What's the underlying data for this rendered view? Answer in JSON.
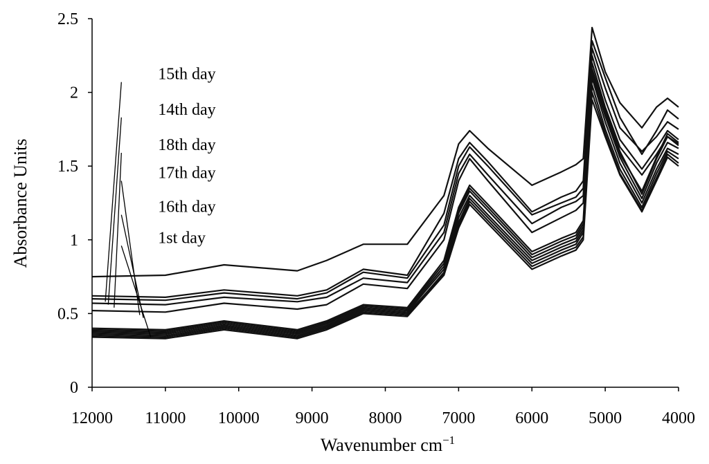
{
  "chart_data": {
    "type": "line",
    "title": "",
    "xlabel": "Wavenumber cm",
    "xlabel_superscript": "−1",
    "ylabel": "Absorbance Units",
    "xlim": [
      12000,
      4000
    ],
    "ylim": [
      0,
      2.5
    ],
    "x_reversed": true,
    "grid": false,
    "x_ticks": [
      12000,
      11000,
      10000,
      9000,
      8000,
      7000,
      6000,
      5000,
      4000
    ],
    "y_ticks": [
      0,
      0.5,
      1,
      1.5,
      2,
      2.5
    ],
    "x_tick_labels": [
      "12000",
      "11000",
      "10000",
      "9000",
      "8000",
      "7000",
      "6000",
      "5000",
      "4000"
    ],
    "y_tick_labels": [
      "0",
      "0.5",
      "1",
      "1.5",
      "2",
      "2.5"
    ],
    "x": [
      12000,
      11000,
      10200,
      9200,
      8800,
      8300,
      7700,
      7200,
      7000,
      6850,
      6600,
      6000,
      5600,
      5400,
      5300,
      5180,
      5000,
      4800,
      4500,
      4300,
      4150,
      4000
    ],
    "series": [
      {
        "name": "15th day",
        "values": [
          0.75,
          0.76,
          0.83,
          0.79,
          0.86,
          0.97,
          0.97,
          1.3,
          1.65,
          1.74,
          1.62,
          1.37,
          1.46,
          1.51,
          1.55,
          2.44,
          2.14,
          1.93,
          1.76,
          1.9,
          1.96,
          1.9
        ]
      },
      {
        "name": "14th day",
        "values": [
          0.62,
          0.61,
          0.66,
          0.62,
          0.66,
          0.8,
          0.76,
          1.18,
          1.55,
          1.66,
          1.53,
          1.19,
          1.29,
          1.33,
          1.4,
          2.35,
          2.1,
          1.83,
          1.58,
          1.74,
          1.88,
          1.82
        ]
      },
      {
        "name": "18th day",
        "values": [
          0.6,
          0.59,
          0.64,
          0.6,
          0.64,
          0.78,
          0.74,
          1.1,
          1.5,
          1.63,
          1.5,
          1.17,
          1.25,
          1.29,
          1.35,
          2.3,
          2.03,
          1.76,
          1.6,
          1.7,
          1.8,
          1.75
        ]
      },
      {
        "name": "17th day",
        "values": [
          0.57,
          0.56,
          0.61,
          0.58,
          0.61,
          0.74,
          0.71,
          1.05,
          1.45,
          1.58,
          1.44,
          1.11,
          1.22,
          1.26,
          1.3,
          2.25,
          1.95,
          1.68,
          1.48,
          1.62,
          1.74,
          1.68
        ]
      },
      {
        "name": "16th day",
        "values": [
          0.52,
          0.51,
          0.57,
          0.53,
          0.56,
          0.7,
          0.67,
          1.0,
          1.4,
          1.55,
          1.4,
          1.05,
          1.15,
          1.2,
          1.25,
          2.2,
          1.9,
          1.63,
          1.44,
          1.58,
          1.7,
          1.64
        ]
      },
      {
        "name": "1st day",
        "values": [
          0.35,
          0.34,
          0.4,
          0.34,
          0.4,
          0.51,
          0.49,
          0.78,
          1.12,
          1.28,
          1.15,
          0.84,
          0.93,
          0.97,
          1.05,
          2.1,
          1.8,
          1.52,
          1.25,
          1.48,
          1.62,
          1.58
        ]
      },
      {
        "name": "",
        "values": [
          0.36,
          0.35,
          0.41,
          0.35,
          0.41,
          0.52,
          0.5,
          0.77,
          1.1,
          1.26,
          1.13,
          0.82,
          0.91,
          0.95,
          1.02,
          2.05,
          1.75,
          1.48,
          1.22,
          1.45,
          1.6,
          1.55
        ]
      },
      {
        "name": "",
        "values": [
          0.37,
          0.36,
          0.42,
          0.36,
          0.42,
          0.53,
          0.51,
          0.8,
          1.15,
          1.3,
          1.17,
          0.86,
          0.95,
          0.99,
          1.07,
          2.12,
          1.84,
          1.56,
          1.28,
          1.52,
          1.66,
          1.62
        ]
      },
      {
        "name": "",
        "values": [
          0.38,
          0.37,
          0.43,
          0.37,
          0.43,
          0.54,
          0.52,
          0.82,
          1.18,
          1.33,
          1.2,
          0.88,
          0.97,
          1.01,
          1.09,
          2.16,
          1.88,
          1.6,
          1.31,
          1.55,
          1.7,
          1.65
        ]
      },
      {
        "name": "",
        "values": [
          0.39,
          0.38,
          0.44,
          0.38,
          0.44,
          0.55,
          0.53,
          0.84,
          1.2,
          1.35,
          1.22,
          0.9,
          0.99,
          1.03,
          1.11,
          2.0,
          1.72,
          1.45,
          1.2,
          1.42,
          1.58,
          1.52
        ]
      },
      {
        "name": "",
        "values": [
          0.34,
          0.33,
          0.39,
          0.33,
          0.39,
          0.5,
          0.48,
          0.76,
          1.08,
          1.24,
          1.11,
          0.8,
          0.89,
          0.93,
          1.0,
          1.95,
          1.7,
          1.44,
          1.19,
          1.4,
          1.56,
          1.5
        ]
      },
      {
        "name": "",
        "values": [
          0.4,
          0.39,
          0.45,
          0.39,
          0.45,
          0.56,
          0.54,
          0.86,
          1.22,
          1.37,
          1.24,
          0.92,
          1.01,
          1.05,
          1.13,
          2.14,
          1.86,
          1.58,
          1.33,
          1.56,
          1.72,
          1.66
        ]
      }
    ],
    "annotations": [
      {
        "text": "15th day",
        "label_at": [
          11100,
          2.07
        ],
        "line_from": [
          11600,
          2.07
        ],
        "line_to": [
          11820,
          0.58
        ]
      },
      {
        "text": "14th day",
        "label_at": [
          11100,
          1.83
        ],
        "line_from": [
          11600,
          1.83
        ],
        "line_to": [
          11780,
          0.56
        ]
      },
      {
        "text": "18th day",
        "label_at": [
          11100,
          1.59
        ],
        "line_from": [
          11600,
          1.59
        ],
        "line_to": [
          11700,
          0.54
        ]
      },
      {
        "text": "17th day",
        "label_at": [
          11100,
          1.4
        ],
        "line_from": [
          11600,
          1.4
        ],
        "line_to": [
          11350,
          0.49
        ]
      },
      {
        "text": "16th day",
        "label_at": [
          11100,
          1.17
        ],
        "line_from": [
          11600,
          1.17
        ],
        "line_to": [
          11300,
          0.47
        ]
      },
      {
        "text": "1st day",
        "label_at": [
          11100,
          0.96
        ],
        "line_from": [
          11600,
          0.96
        ],
        "line_to": [
          11200,
          0.34
        ]
      }
    ]
  }
}
